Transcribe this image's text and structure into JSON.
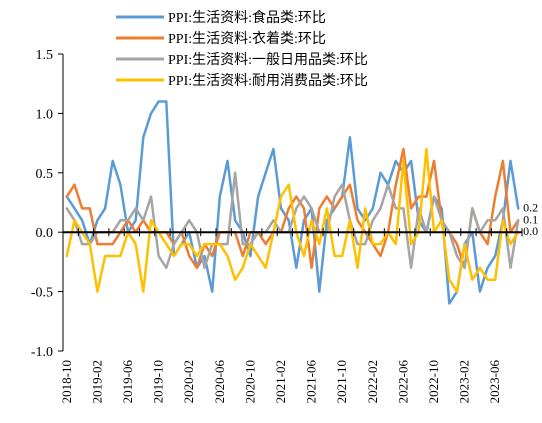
{
  "chart_data": {
    "type": "line",
    "title": "",
    "xlabel": "",
    "ylabel": "",
    "ylim": [
      -1.0,
      1.5
    ],
    "yticks": [
      "1.5",
      "1.0",
      "0.5",
      "0.0",
      "-0.5",
      "-1.0"
    ],
    "legend_position": "top",
    "grid": false,
    "x": [
      "2018-10",
      "2018-11",
      "2018-12",
      "2019-01",
      "2019-02",
      "2019-03",
      "2019-04",
      "2019-05",
      "2019-06",
      "2019-07",
      "2019-08",
      "2019-09",
      "2019-10",
      "2019-11",
      "2019-12",
      "2020-01",
      "2020-02",
      "2020-03",
      "2020-04",
      "2020-05",
      "2020-06",
      "2020-07",
      "2020-08",
      "2020-09",
      "2020-10",
      "2020-11",
      "2020-12",
      "2021-01",
      "2021-02",
      "2021-03",
      "2021-04",
      "2021-05",
      "2021-06",
      "2021-07",
      "2021-08",
      "2021-09",
      "2021-10",
      "2021-11",
      "2021-12",
      "2022-01",
      "2022-02",
      "2022-03",
      "2022-04",
      "2022-05",
      "2022-06",
      "2022-07",
      "2022-08",
      "2022-09",
      "2022-10",
      "2022-11",
      "2022-12",
      "2023-01",
      "2023-02",
      "2023-03",
      "2023-04",
      "2023-05",
      "2023-06",
      "2023-07",
      "2023-08",
      "2023-09"
    ],
    "xtick_labels": [
      "2018-10",
      "2019-02",
      "2019-06",
      "2019-10",
      "2020-02",
      "2020-06",
      "2020-10",
      "2021-02",
      "2021-06",
      "2021-10",
      "2022-02",
      "2022-06",
      "2022-10",
      "2023-02",
      "2023-06"
    ],
    "series": [
      {
        "name": "PPI:生活资料:食品类:环比",
        "color": "#5B9BD5",
        "values": [
          0.3,
          0.2,
          0.1,
          -0.1,
          0.1,
          0.2,
          0.6,
          0.4,
          0.0,
          0.1,
          0.8,
          1.0,
          1.1,
          1.1,
          -0.2,
          -0.1,
          0.0,
          -0.3,
          -0.2,
          -0.5,
          0.3,
          0.6,
          0.1,
          0.0,
          -0.2,
          0.3,
          0.5,
          0.7,
          0.2,
          0.1,
          -0.3,
          0.1,
          0.2,
          -0.5,
          0.1,
          0.2,
          0.3,
          0.8,
          0.2,
          0.1,
          0.2,
          0.5,
          0.4,
          0.6,
          0.5,
          0.6,
          0.1,
          0.0,
          0.3,
          0.2,
          -0.6,
          -0.5,
          -0.1,
          0.0,
          -0.5,
          -0.3,
          -0.2,
          0.1,
          0.6,
          0.2
        ]
      },
      {
        "name": "PPI:生活资料:衣着类:环比",
        "color": "#ED7D31",
        "values": [
          0.3,
          0.4,
          0.2,
          0.2,
          -0.1,
          -0.1,
          -0.1,
          0.0,
          0.1,
          0.0,
          0.1,
          0.0,
          0.0,
          0.0,
          -0.1,
          0.0,
          -0.2,
          -0.3,
          -0.1,
          -0.2,
          0.0,
          0.0,
          0.0,
          -0.2,
          0.0,
          0.0,
          -0.1,
          0.0,
          0.0,
          0.2,
          0.3,
          0.2,
          -0.3,
          0.2,
          0.3,
          0.2,
          0.3,
          0.4,
          0.1,
          0.0,
          -0.1,
          -0.2,
          0.0,
          0.4,
          0.7,
          0.2,
          0.3,
          0.3,
          0.6,
          0.1,
          0.0,
          -0.1,
          -0.3,
          0.2,
          0.0,
          -0.1,
          0.3,
          0.6,
          0.0,
          0.1
        ]
      },
      {
        "name": "PPI:生活资料:一般日用品类:环比",
        "color": "#A5A5A5",
        "values": [
          0.2,
          0.1,
          -0.1,
          -0.1,
          0.0,
          0.0,
          0.0,
          0.1,
          0.1,
          0.2,
          0.1,
          0.3,
          -0.2,
          -0.3,
          -0.1,
          0.0,
          0.1,
          0.0,
          -0.3,
          -0.1,
          -0.1,
          -0.1,
          0.5,
          -0.1,
          -0.1,
          0.0,
          0.0,
          0.1,
          0.0,
          0.0,
          0.2,
          0.3,
          0.2,
          0.0,
          0.0,
          0.3,
          0.4,
          0.1,
          -0.1,
          -0.1,
          0.1,
          0.2,
          0.4,
          0.2,
          0.2,
          -0.3,
          0.2,
          0.0,
          0.3,
          0.1,
          0.0,
          -0.2,
          -0.3,
          0.2,
          0.0,
          0.1,
          0.1,
          0.2,
          -0.3,
          0.1
        ]
      },
      {
        "name": "PPI:生活资料:耐用消费品类:环比",
        "color": "#FFC000",
        "values": [
          -0.2,
          0.1,
          0.0,
          -0.1,
          -0.5,
          -0.2,
          -0.2,
          -0.2,
          0.0,
          -0.1,
          -0.5,
          0.1,
          0.0,
          -0.1,
          -0.2,
          -0.1,
          -0.1,
          -0.2,
          -0.1,
          -0.1,
          -0.1,
          -0.2,
          -0.4,
          -0.3,
          -0.1,
          -0.2,
          -0.3,
          0.0,
          0.3,
          0.4,
          0.0,
          -0.2,
          0.1,
          -0.1,
          0.2,
          -0.2,
          -0.2,
          0.1,
          -0.3,
          0.2,
          -0.1,
          -0.1,
          0.0,
          -0.1,
          0.6,
          -0.1,
          0.0,
          0.7,
          0.0,
          0.1,
          -0.4,
          -0.5,
          -0.1,
          -0.4,
          -0.3,
          -0.4,
          -0.4,
          0.1,
          -0.1,
          0.0
        ]
      }
    ],
    "end_labels": [
      "0.2",
      "0.1",
      "0.0"
    ]
  }
}
